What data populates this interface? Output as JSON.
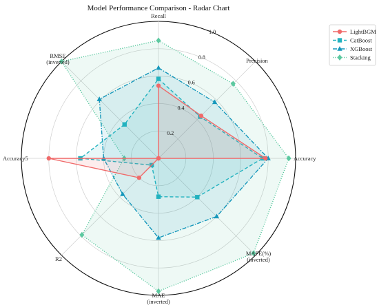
{
  "chart_data": {
    "type": "radar",
    "title": "Model Performance Comparison - Radar Chart",
    "axes": [
      {
        "lines": [
          "Recall"
        ]
      },
      {
        "lines": [
          "Precision"
        ]
      },
      {
        "lines": [
          "Accuracy"
        ]
      },
      {
        "lines": [
          "MAPE(%)",
          "(inverted)"
        ]
      },
      {
        "lines": [
          "MAE",
          "(inverted)"
        ]
      },
      {
        "lines": [
          "R2"
        ]
      },
      {
        "lines": [
          "Accuracy5"
        ]
      },
      {
        "lines": [
          "RMSE",
          "(inverted)"
        ]
      }
    ],
    "rlim": [
      0,
      1.0
    ],
    "rticks": [
      0.2,
      0.4,
      0.6,
      0.8,
      1.0
    ],
    "rtick_labels": [
      "0.2",
      "0.4",
      "0.6",
      "0.8",
      "1.0"
    ],
    "grid": true,
    "legend_position": "top-right",
    "series": [
      {
        "name": "LightBGM",
        "color": "#f06a6a",
        "linestyle": "solid",
        "marker": "circle",
        "fill_opacity": 0.12,
        "values": [
          0.53,
          0.44,
          0.78,
          0.0,
          0.0,
          0.2,
          0.8,
          0.0
        ]
      },
      {
        "name": "CatBoost",
        "color": "#22b2bf",
        "linestyle": "dashed",
        "marker": "square",
        "fill_opacity": 0.1,
        "values": [
          0.58,
          0.43,
          0.76,
          0.4,
          0.28,
          0.07,
          0.57,
          0.35
        ]
      },
      {
        "name": "XGBoost",
        "color": "#1597bb",
        "linestyle": "dashdot",
        "marker": "triangle",
        "fill_opacity": 0.1,
        "values": [
          0.66,
          0.58,
          0.8,
          0.6,
          0.58,
          0.37,
          0.4,
          0.61
        ]
      },
      {
        "name": "Stacking",
        "color": "#5cc9a0",
        "linestyle": "dotted",
        "marker": "diamond",
        "fill_opacity": 0.1,
        "values": [
          0.86,
          0.77,
          0.95,
          0.98,
          0.97,
          0.79,
          0.25,
          1.0
        ]
      }
    ]
  }
}
